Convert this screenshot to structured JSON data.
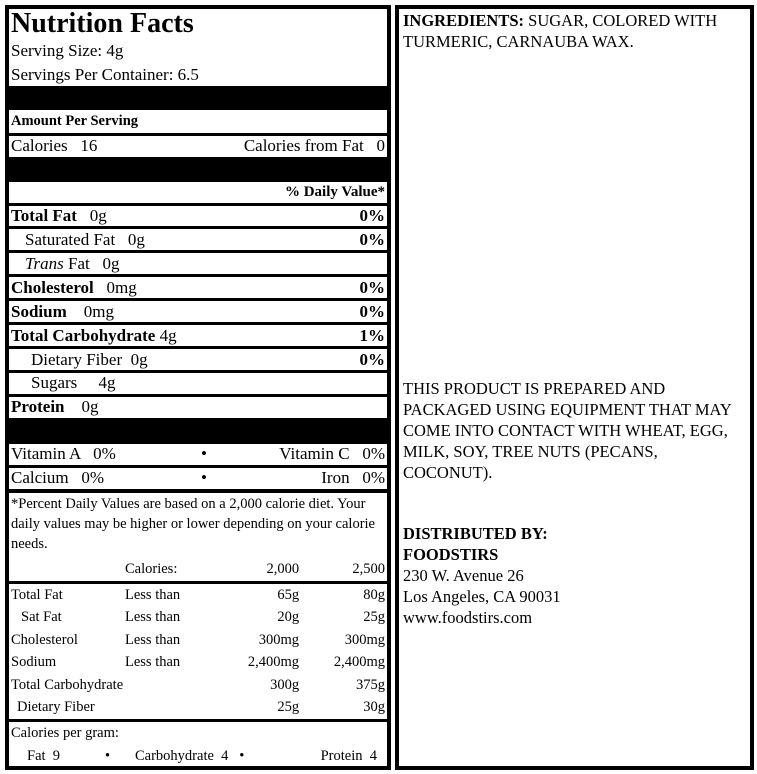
{
  "nutrition": {
    "title": "Nutrition Facts",
    "serving_size": "Serving Size: 4g",
    "servings_per_container": "Servings Per Container: 6.5",
    "amount_per_serving": "Amount Per Serving",
    "calories_label": "Calories",
    "calories_value": "16",
    "calories_fat_label": "Calories from Fat",
    "calories_fat_value": "0",
    "daily_value_header": "% Daily Value*",
    "nutrients": [
      {
        "name": "Total Fat",
        "amount": "0g",
        "dv": "0%"
      },
      {
        "name": "Saturated Fat",
        "amount": "0g",
        "dv": "0%"
      },
      {
        "name": "Trans",
        "name_suffix": " Fat",
        "amount": "0g",
        "dv": ""
      },
      {
        "name": "Cholesterol",
        "amount": "0mg",
        "dv": "0%"
      },
      {
        "name": "Sodium",
        "amount": "0mg",
        "dv": "0%"
      },
      {
        "name": "Total Carbohydrate",
        "amount": "4g",
        "dv": "1%"
      },
      {
        "name": "Dietary Fiber",
        "amount": "0g",
        "dv": "0%"
      },
      {
        "name": "Sugars",
        "amount": "4g",
        "dv": ""
      },
      {
        "name": "Protein",
        "amount": "0g",
        "dv": ""
      }
    ],
    "vitamins": [
      {
        "name": "Vitamin A",
        "value": "0%"
      },
      {
        "name": "Vitamin C",
        "value": "0%"
      },
      {
        "name": "Calcium",
        "value": "0%"
      },
      {
        "name": "Iron",
        "value": "0%"
      }
    ],
    "bullet": "•",
    "footnote": "*Percent Daily Values are based on a 2,000 calorie diet. Your daily values may be higher or lower depending on your calorie needs.",
    "table": {
      "header": [
        "",
        "Calories:",
        "2,000",
        "2,500"
      ],
      "rows": [
        [
          "Total Fat",
          "Less than",
          "65g",
          "80g"
        ],
        [
          "Sat Fat",
          "Less than",
          "20g",
          "25g"
        ],
        [
          "Cholesterol",
          "Less than",
          "300mg",
          "300mg"
        ],
        [
          "Sodium",
          "Less than",
          "2,400mg",
          "2,400mg"
        ],
        [
          "Total Carbohydrate",
          "",
          "300g",
          "375g"
        ],
        [
          "Dietary Fiber",
          "",
          "25g",
          "30g"
        ]
      ]
    },
    "calories_per_gram": "Calories per gram:",
    "cpg": {
      "fat": "Fat  9",
      "carb": "Carbohydrate  4",
      "protein": "Protein  4"
    }
  },
  "right": {
    "ingredients_label": "INGREDIENTS:",
    "ingredients": " SUGAR, COLORED WITH TURMERIC, CARNAUBA WAX.",
    "allergen": "THIS PRODUCT IS PREPARED AND PACKAGED USING EQUIPMENT THAT MAY COME INTO CONTACT WITH WHEAT, EGG,  MILK, SOY, TREE NUTS (PECANS, COCONUT).",
    "distributed_label": "DISTRIBUTED BY:",
    "company": "FOODSTIRS",
    "address1": "230 W. Avenue 26",
    "address2": "Los Angeles, CA 90031",
    "website": "www.foodstirs.com"
  }
}
